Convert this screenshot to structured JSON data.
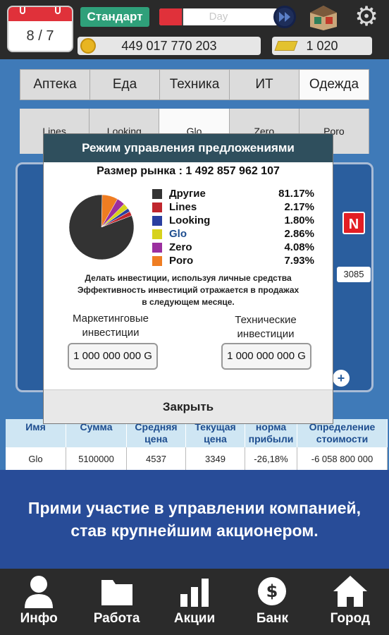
{
  "topbar": {
    "date": "8 / 7",
    "plan_label": "Стандарт",
    "progress_label": "Day",
    "progress_fraction": 0.2,
    "money": "449 017 770 203",
    "gold": "1 020"
  },
  "categories": [
    "Аптека",
    "Еда",
    "Техника",
    "ИТ",
    "Одежда"
  ],
  "brands": [
    "Lines",
    "Looking",
    "Glo",
    "Zero",
    "Poro"
  ],
  "side": {
    "badge": "N",
    "number": "3085"
  },
  "modal": {
    "title": "Режим управления предложениями",
    "market_size": "Размер рынка : 1 492 857 962 107",
    "legend": [
      {
        "name": "Другие",
        "pct": "81.17%",
        "value": 81.17,
        "color": "#333333"
      },
      {
        "name": "Lines",
        "pct": "2.17%",
        "value": 2.17,
        "color": "#c0262d"
      },
      {
        "name": "Looking",
        "pct": "1.80%",
        "value": 1.8,
        "color": "#2a3fa0"
      },
      {
        "name": "Glo",
        "pct": "2.86%",
        "value": 2.86,
        "color": "#d7d21c"
      },
      {
        "name": "Zero",
        "pct": "4.08%",
        "value": 4.08,
        "color": "#9b2f9f"
      },
      {
        "name": "Poro",
        "pct": "7.93%",
        "value": 7.93,
        "color": "#ef7d22"
      }
    ],
    "note_lines": [
      "Делать инвестиции, используя личные средства",
      "Эффективность инвестиций отражается в продажах",
      "в следующем месяце."
    ],
    "marketing_label_1": "Маркетинговые",
    "marketing_label_2": "инвестиции",
    "marketing_value": "1 000 000 000 G",
    "tech_label_1": "Технические",
    "tech_label_2": "инвестиции",
    "tech_value": "1 000 000 000 G",
    "close_label": "Закрыть"
  },
  "table": {
    "headers": [
      [
        "Имя",
        ""
      ],
      [
        "Сумма",
        ""
      ],
      [
        "Средняя",
        "цена"
      ],
      [
        "Текущая",
        "цена"
      ],
      [
        "норма",
        "прибыли"
      ],
      [
        "Определение",
        "стоимости"
      ]
    ],
    "row": [
      "Glo",
      "5100000",
      "4537",
      "3349",
      "-26,18%",
      "-6 058 800 000"
    ]
  },
  "promo": {
    "line1": "Прими участие в управлении компанией,",
    "line2": "став крупнейшим акционером."
  },
  "nav": [
    {
      "label": "Инфо",
      "icon": "person-icon"
    },
    {
      "label": "Работа",
      "icon": "folder-icon"
    },
    {
      "label": "Акции",
      "icon": "bar-chart-icon"
    },
    {
      "label": "Банк",
      "icon": "dollar-icon"
    },
    {
      "label": "Город",
      "icon": "house-icon"
    }
  ]
}
